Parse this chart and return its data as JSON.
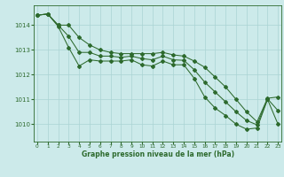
{
  "title": "Graphe pression niveau de la mer (hPa)",
  "bg_color": "#cceaea",
  "grid_color": "#aad4d4",
  "line_color": "#2d6a2d",
  "x_ticks": [
    0,
    1,
    2,
    3,
    4,
    5,
    6,
    7,
    8,
    9,
    10,
    11,
    12,
    13,
    14,
    15,
    16,
    17,
    18,
    19,
    20,
    21,
    22,
    23
  ],
  "y_ticks": [
    1010,
    1011,
    1012,
    1013,
    1014
  ],
  "ylim": [
    1009.3,
    1014.8
  ],
  "xlim": [
    -0.3,
    23.3
  ],
  "series_upper": [
    1014.4,
    1014.45,
    1014.0,
    1014.0,
    1013.5,
    1013.2,
    1013.0,
    1012.9,
    1012.85,
    1012.85,
    1012.85,
    1012.85,
    1012.9,
    1012.8,
    1012.75,
    1012.55,
    1012.3,
    1011.9,
    1011.5,
    1011.0,
    1010.5,
    1010.1,
    1011.05,
    1011.1
  ],
  "series_lower": [
    1014.4,
    1014.45,
    1013.95,
    1013.1,
    1012.35,
    1012.6,
    1012.55,
    1012.55,
    1012.55,
    1012.6,
    1012.4,
    1012.35,
    1012.55,
    1012.4,
    1012.4,
    1011.85,
    1011.1,
    1010.65,
    1010.35,
    1010.0,
    1009.8,
    1009.85,
    1011.0,
    1010.0
  ],
  "series_mid": [
    1014.4,
    1014.45,
    1014.0,
    1013.55,
    1012.9,
    1012.9,
    1012.75,
    1012.75,
    1012.7,
    1012.75,
    1012.65,
    1012.6,
    1012.75,
    1012.6,
    1012.58,
    1012.2,
    1011.7,
    1011.3,
    1010.9,
    1010.5,
    1010.15,
    1009.975,
    1011.025,
    1010.55
  ]
}
